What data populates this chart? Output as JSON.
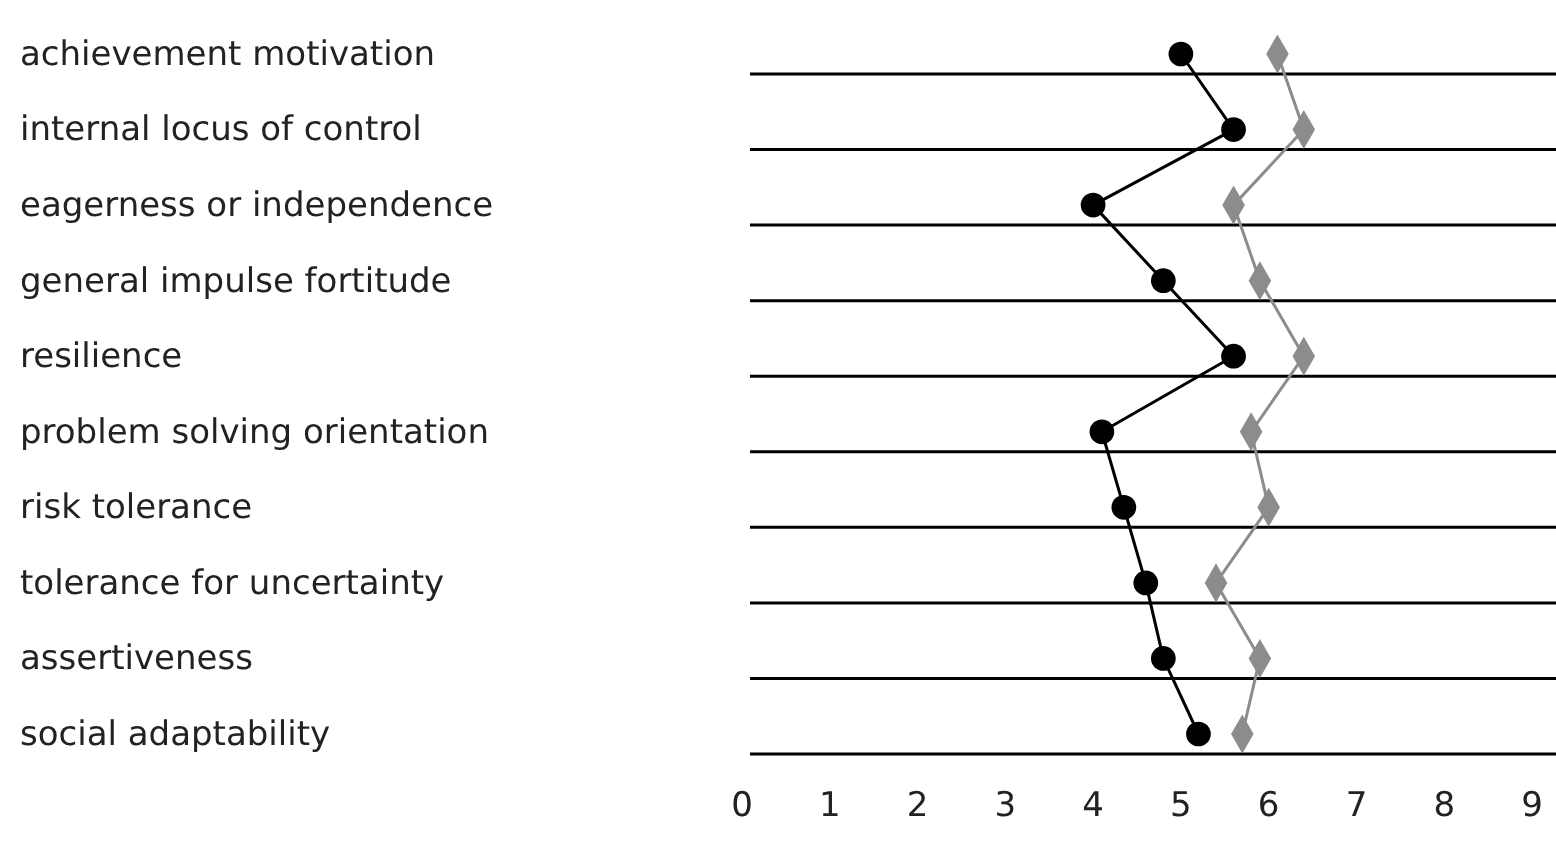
{
  "chart_data": {
    "type": "line",
    "orientation": "horizontal",
    "categories": [
      "achievement motivation",
      "internal locus of control",
      "eagerness or independence",
      "general impulse fortitude",
      "resilience",
      "problem solving orientation",
      "risk tolerance",
      "tolerance for uncertainty",
      "assertiveness",
      "social adaptability"
    ],
    "series": [
      {
        "color": "#000000",
        "marker": "circle",
        "values": [
          5.0,
          5.6,
          4.0,
          4.8,
          5.6,
          4.1,
          4.35,
          4.6,
          4.8,
          5.2
        ]
      },
      {
        "color": "#8c8c8c",
        "marker": "diamond",
        "values": [
          6.1,
          6.4,
          5.6,
          5.9,
          6.4,
          5.8,
          6.0,
          5.4,
          5.9,
          5.7
        ]
      }
    ],
    "xlim": [
      0,
      9
    ],
    "xticks": [
      0,
      1,
      2,
      3,
      4,
      5,
      6,
      7,
      8,
      9
    ],
    "grid": "y",
    "line_style": "solid"
  }
}
